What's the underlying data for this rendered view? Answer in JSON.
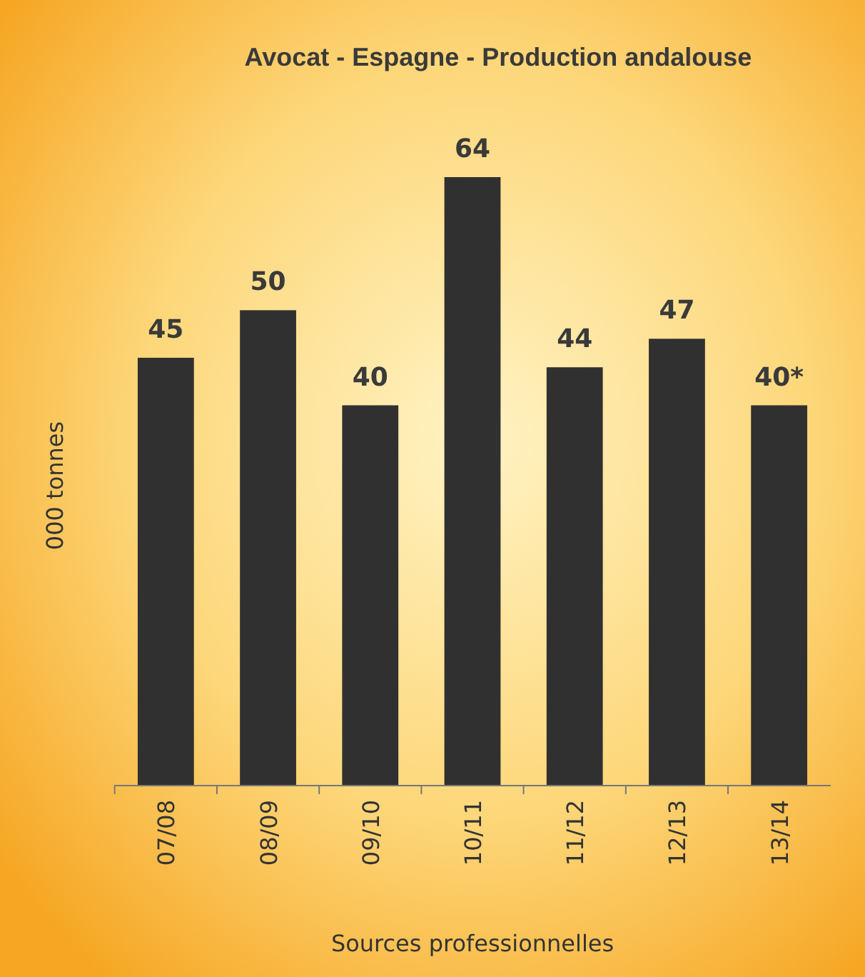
{
  "chart_data": {
    "type": "bar",
    "title": "Avocat - Espagne - Production andalouse",
    "ylabel": "000 tonnes",
    "annotations": [
      "Sources professionnelles"
    ],
    "categories": [
      "07/08",
      "08/09",
      "09/10",
      "10/11",
      "11/12",
      "12/13",
      "13/14"
    ],
    "values": [
      45,
      50,
      40,
      64,
      44,
      47,
      40
    ],
    "color": "#303030",
    "value_labels": [
      "45",
      "50",
      "40",
      "64",
      "44",
      "47",
      "40*"
    ]
  }
}
